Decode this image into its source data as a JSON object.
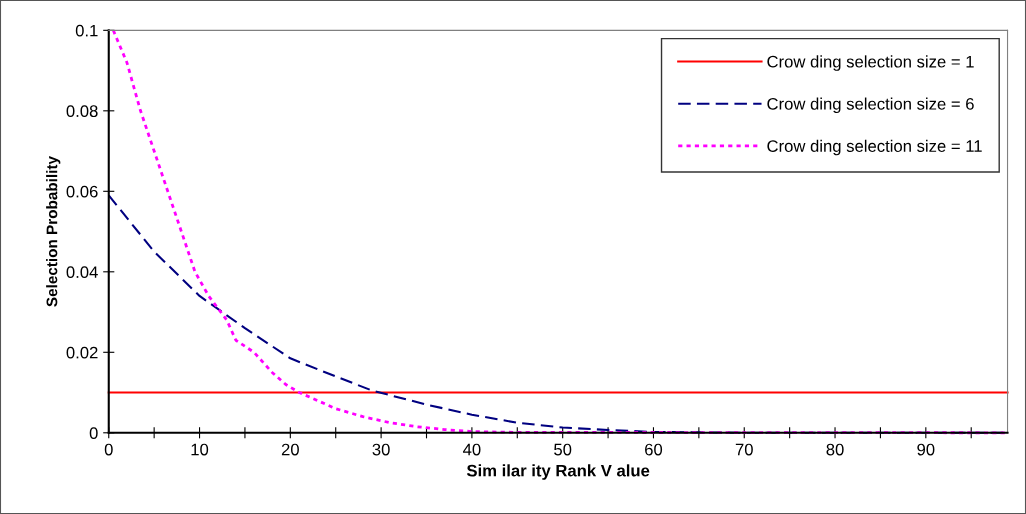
{
  "chart_data": {
    "type": "line",
    "xlabel": "Sim ilar ity Rank V alue",
    "ylabel": "Selection Probability",
    "xlim": [
      0,
      99
    ],
    "ylim": [
      0,
      0.1
    ],
    "xticks": [
      0,
      {
        "value": 5,
        "label": null
      },
      10,
      {
        "value": 15,
        "label": null
      },
      20,
      {
        "value": 25,
        "label": null
      },
      30,
      {
        "value": 35,
        "label": null
      },
      40,
      {
        "value": 45,
        "label": null
      },
      50,
      {
        "value": 55,
        "label": null
      },
      60,
      {
        "value": 65,
        "label": null
      },
      70,
      {
        "value": 75,
        "label": null
      },
      80,
      {
        "value": 85,
        "label": null
      },
      90,
      {
        "value": 95,
        "label": null
      }
    ],
    "yticks": [
      0,
      0.02,
      0.04,
      0.06,
      0.08,
      0.1
    ],
    "grid": false,
    "legend": "top right",
    "marker": "none",
    "series": [
      {
        "name": "Crow ding selection size = 1",
        "color": "#ff0000",
        "line_style": "solid",
        "x": [
          0,
          99
        ],
        "values": [
          0.01,
          0.01
        ]
      },
      {
        "name": "Crow ding selection size = 6",
        "color": "#000080",
        "line_style": "dashed",
        "x": [
          0,
          5,
          10,
          15,
          20,
          25,
          29,
          35,
          40,
          45,
          50,
          55,
          60,
          65,
          70,
          99
        ],
        "values": [
          0.059,
          0.045,
          0.034,
          0.026,
          0.0185,
          0.014,
          0.0105,
          0.007,
          0.0045,
          0.0025,
          0.0013,
          0.0007,
          0.0002,
          0.0001,
          0,
          0
        ]
      },
      {
        "name": "Crow ding selection size = 11",
        "color": "#ff00ff",
        "line_style": "dotted",
        "x": [
          0.5,
          2,
          3.5,
          5,
          6.5,
          8,
          9.5,
          11,
          13,
          14,
          16,
          18,
          19.5,
          21,
          23,
          25,
          28,
          31,
          34,
          37,
          40,
          45,
          99
        ],
        "values": [
          0.1,
          0.092,
          0.08,
          0.07,
          0.06,
          0.05,
          0.04,
          0.034,
          0.028,
          0.023,
          0.02,
          0.015,
          0.012,
          0.01,
          0.008,
          0.006,
          0.004,
          0.0025,
          0.0015,
          0.0008,
          0.0003,
          0.0001,
          0
        ]
      }
    ]
  }
}
